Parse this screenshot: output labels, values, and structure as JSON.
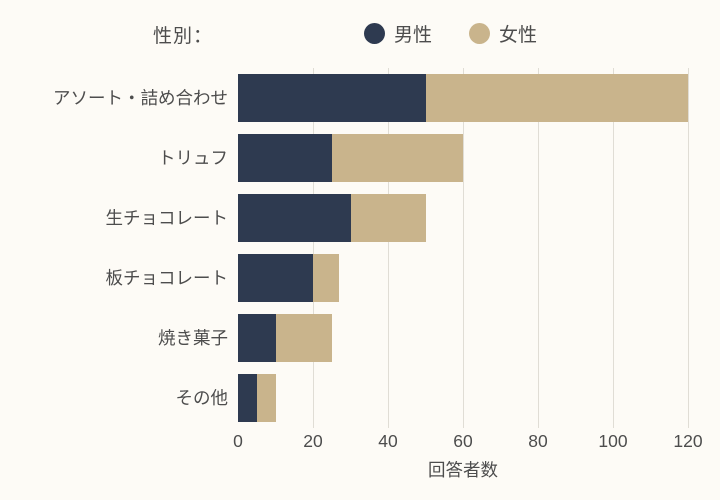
{
  "legend": {
    "title": "性別：",
    "items": [
      {
        "label": "男性",
        "color": "#2e3a50"
      },
      {
        "label": "女性",
        "color": "#c9b48c"
      }
    ]
  },
  "chart_data": {
    "type": "bar",
    "orientation": "horizontal",
    "stacked": true,
    "title": "",
    "categories": [
      "アソート・詰め合わせ",
      "トリュフ",
      "生チョコレート",
      "板チョコレート",
      "焼き菓子",
      "その他"
    ],
    "series": [
      {
        "name": "男性",
        "color": "#2e3a50",
        "values": [
          50,
          25,
          30,
          20,
          10,
          5
        ]
      },
      {
        "name": "女性",
        "color": "#c9b48c",
        "values": [
          70,
          35,
          20,
          7,
          15,
          5
        ]
      }
    ],
    "totals": [
      120,
      60,
      50,
      27,
      25,
      10
    ],
    "xlabel": "回答者数",
    "ylabel": "",
    "xlim": [
      0,
      120
    ],
    "xticks": [
      0,
      20,
      40,
      60,
      80,
      100,
      120
    ],
    "grid": true,
    "legend_position": "top"
  },
  "colors": {
    "background": "#fdfbf6",
    "gridline": "#e0ddd5",
    "text": "#4d4d4d"
  }
}
